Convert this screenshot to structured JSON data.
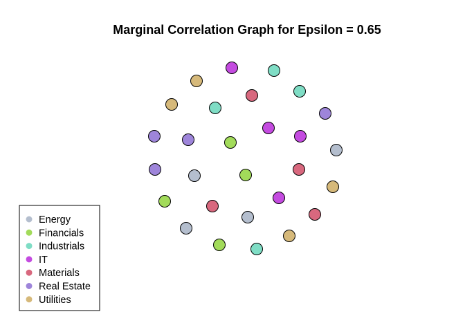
{
  "title": "Marginal Correlation Graph for Epsilon =  0.65",
  "legend": {
    "items": [
      {
        "label": "Energy",
        "color": "#B4BECE"
      },
      {
        "label": "Financials",
        "color": "#A2DB5A"
      },
      {
        "label": "Industrials",
        "color": "#7FDDC5"
      },
      {
        "label": "IT",
        "color": "#C44BE0"
      },
      {
        "label": "Materials",
        "color": "#D8687E"
      },
      {
        "label": "Real Estate",
        "color": "#9E85DA"
      },
      {
        "label": "Utilities",
        "color": "#D6B97A"
      }
    ]
  },
  "graph": {
    "edges": [],
    "nodes": [
      {
        "sector": "IT"
      },
      {
        "sector": "Industrials"
      },
      {
        "sector": "Utilities"
      },
      {
        "sector": "Industrials"
      },
      {
        "sector": "Materials"
      },
      {
        "sector": "Utilities"
      },
      {
        "sector": "Industrials"
      },
      {
        "sector": "Real Estate"
      },
      {
        "sector": "IT"
      },
      {
        "sector": "Real Estate"
      },
      {
        "sector": "Real Estate"
      },
      {
        "sector": "Financials"
      },
      {
        "sector": "IT"
      },
      {
        "sector": "Energy"
      },
      {
        "sector": "Real Estate"
      },
      {
        "sector": "Energy"
      },
      {
        "sector": "Financials"
      },
      {
        "sector": "Materials"
      },
      {
        "sector": "Utilities"
      },
      {
        "sector": "Financials"
      },
      {
        "sector": "IT"
      },
      {
        "sector": "Materials"
      },
      {
        "sector": "Energy"
      },
      {
        "sector": "Materials"
      },
      {
        "sector": "Energy"
      },
      {
        "sector": "Utilities"
      },
      {
        "sector": "Financials"
      },
      {
        "sector": "Industrials"
      }
    ]
  }
}
